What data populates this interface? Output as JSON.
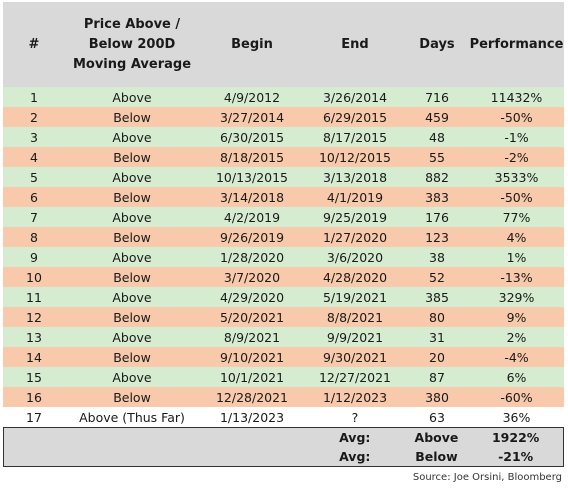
{
  "headers": [
    "#",
    "Price Above / Below 200D Moving Average",
    "Begin",
    "End",
    "Days",
    "Performance"
  ],
  "rows": [
    {
      "n": "1",
      "pos": "Above",
      "begin": "4/9/2012",
      "end": "3/26/2014",
      "days": "716",
      "perf": "11432%"
    },
    {
      "n": "2",
      "pos": "Below",
      "begin": "3/27/2014",
      "end": "6/29/2015",
      "days": "459",
      "perf": "-50%"
    },
    {
      "n": "3",
      "pos": "Above",
      "begin": "6/30/2015",
      "end": "8/17/2015",
      "days": "48",
      "perf": "-1%"
    },
    {
      "n": "4",
      "pos": "Below",
      "begin": "8/18/2015",
      "end": "10/12/2015",
      "days": "55",
      "perf": "-2%"
    },
    {
      "n": "5",
      "pos": "Above",
      "begin": "10/13/2015",
      "end": "3/13/2018",
      "days": "882",
      "perf": "3533%"
    },
    {
      "n": "6",
      "pos": "Below",
      "begin": "3/14/2018",
      "end": "4/1/2019",
      "days": "383",
      "perf": "-50%"
    },
    {
      "n": "7",
      "pos": "Above",
      "begin": "4/2/2019",
      "end": "9/25/2019",
      "days": "176",
      "perf": "77%"
    },
    {
      "n": "8",
      "pos": "Below",
      "begin": "9/26/2019",
      "end": "1/27/2020",
      "days": "123",
      "perf": "4%"
    },
    {
      "n": "9",
      "pos": "Above",
      "begin": "1/28/2020",
      "end": "3/6/2020",
      "days": "38",
      "perf": "1%"
    },
    {
      "n": "10",
      "pos": "Below",
      "begin": "3/7/2020",
      "end": "4/28/2020",
      "days": "52",
      "perf": "-13%"
    },
    {
      "n": "11",
      "pos": "Above",
      "begin": "4/29/2020",
      "end": "5/19/2021",
      "days": "385",
      "perf": "329%"
    },
    {
      "n": "12",
      "pos": "Below",
      "begin": "5/20/2021",
      "end": "8/8/2021",
      "days": "80",
      "perf": "9%"
    },
    {
      "n": "13",
      "pos": "Above",
      "begin": "8/9/2021",
      "end": "9/9/2021",
      "days": "31",
      "perf": "2%"
    },
    {
      "n": "14",
      "pos": "Below",
      "begin": "9/10/2021",
      "end": "9/30/2021",
      "days": "20",
      "perf": "-4%"
    },
    {
      "n": "15",
      "pos": "Above",
      "begin": "10/1/2021",
      "end": "12/27/2021",
      "days": "87",
      "perf": "6%"
    },
    {
      "n": "16",
      "pos": "Below",
      "begin": "12/28/2021",
      "end": "1/12/2023",
      "days": "380",
      "perf": "-60%"
    },
    {
      "n": "17",
      "pos": "Above (Thus Far)",
      "begin": "1/13/2023",
      "end": "?",
      "days": "63",
      "perf": "36%"
    }
  ],
  "averages": [
    {
      "label": "Avg:",
      "pos": "Above",
      "perf": "1922%"
    },
    {
      "label": "Avg:",
      "pos": "Below",
      "perf": "-21%"
    }
  ],
  "source": "Source: Joe Orsini, Bloomberg",
  "colors": {
    "above": "#d6ecd0",
    "below": "#f8c9aa",
    "header": "#d9d9d9"
  },
  "chart_data": {
    "type": "table",
    "columns": [
      "#",
      "Price Above / Below 200D Moving Average",
      "Begin",
      "End",
      "Days",
      "Performance"
    ],
    "summary": [
      {
        "label": "Avg:",
        "pos": "Above",
        "perf": "1922%"
      },
      {
        "label": "Avg:",
        "pos": "Below",
        "perf": "-21%"
      }
    ]
  }
}
